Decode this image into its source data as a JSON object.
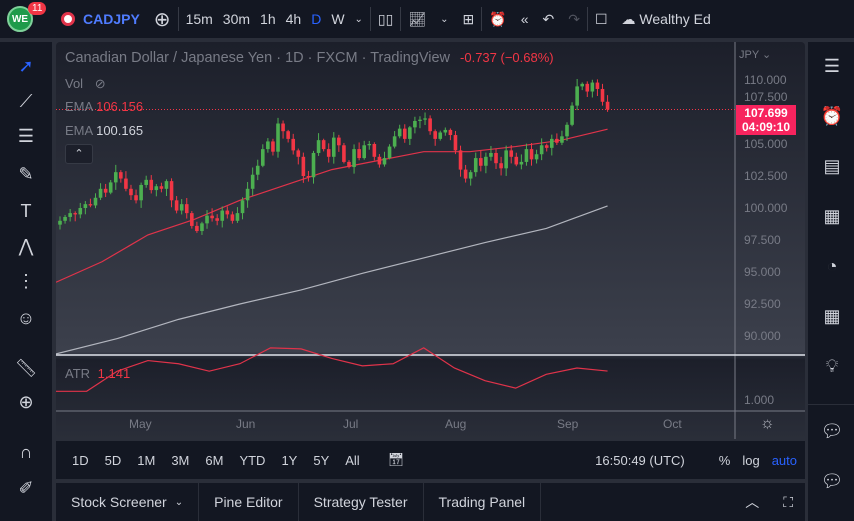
{
  "toolbar": {
    "notif_count": "11",
    "symbol": "CADJPY",
    "intervals": [
      "15m",
      "30m",
      "1h",
      "4h",
      "D",
      "W"
    ],
    "active_interval": "D",
    "layout_name": "Wealthy Ed"
  },
  "legend": {
    "title": "Canadian Dollar / Japanese Yen · 1D · FXCM · TradingView",
    "change": "-0.737 (−0.68%)",
    "vol": "Vol",
    "ema1_label": "EMA",
    "ema1_value": "106.156",
    "ema2_label": "EMA",
    "ema2_value": "100.165",
    "atr_label": "ATR",
    "atr_value": "1.141"
  },
  "price_axis": {
    "currency": "JPY",
    "ticks": [
      "110.000",
      "107.500",
      "105.000",
      "102.500",
      "100.000",
      "97.500",
      "95.000",
      "92.500",
      "90.000"
    ],
    "last_price": "107.699",
    "countdown": "04:09:10",
    "atr_tick": "1.000"
  },
  "time_axis": {
    "labels": [
      "May",
      "Jun",
      "Jul",
      "Aug",
      "Sep",
      "Oct"
    ]
  },
  "ranges": [
    "1D",
    "5D",
    "1M",
    "3M",
    "6M",
    "YTD",
    "1Y",
    "5Y",
    "All"
  ],
  "clock": "16:50:49 (UTC)",
  "pct": "%",
  "log": "log",
  "auto": "auto",
  "panels": [
    "Stock Screener",
    "Pine Editor",
    "Strategy Tester",
    "Trading Panel"
  ],
  "colors": {
    "up": "#26a69a",
    "down": "#f23645",
    "ema_fast": "#e0334a",
    "ema_slow": "#b2b5be",
    "accent": "#2962ff",
    "price_label": "#f7245e"
  },
  "chart_data": {
    "type": "candlestick",
    "ylim": [
      90,
      110
    ],
    "closes": [
      99.0,
      99.3,
      99.6,
      99.5,
      100.0,
      100.3,
      100.2,
      100.8,
      101.5,
      101.2,
      102.0,
      102.8,
      102.3,
      101.5,
      101.0,
      100.6,
      101.8,
      102.2,
      101.4,
      101.7,
      101.5,
      102.1,
      100.6,
      99.8,
      100.3,
      99.6,
      98.6,
      98.2,
      98.8,
      99.4,
      99.2,
      99.0,
      99.8,
      99.5,
      99.0,
      99.6,
      100.6,
      101.5,
      102.6,
      103.3,
      104.6,
      105.2,
      104.4,
      106.6,
      106.0,
      105.4,
      104.5,
      104.0,
      102.5,
      102.4,
      104.3,
      105.3,
      104.6,
      104.0,
      105.5,
      104.9,
      103.6,
      103.2,
      104.6,
      103.9,
      104.9,
      105.0,
      104.0,
      103.4,
      103.9,
      104.8,
      105.6,
      106.2,
      105.4,
      106.3,
      106.8,
      106.9,
      107.0,
      106.0,
      105.4,
      105.9,
      106.1,
      105.7,
      104.5,
      103.0,
      102.3,
      102.8,
      103.9,
      103.3,
      104.0,
      104.3,
      103.5,
      103.1,
      104.5,
      104.0,
      103.4,
      103.6,
      104.6,
      103.8,
      104.2,
      104.9,
      104.7,
      105.4,
      105.1,
      105.6,
      106.5,
      108.0,
      109.5,
      109.7,
      109.1,
      109.8,
      109.3,
      108.3,
      107.7
    ],
    "ema_fast": [
      94.2,
      95.8,
      97.9,
      99.1,
      100.6,
      101.8,
      103.0,
      103.7,
      104.4,
      104.4,
      104.8,
      105.3,
      106.156
    ],
    "ema_slow": [
      88.6,
      89.8,
      91.3,
      92.5,
      93.6,
      94.9,
      96.1,
      97.3,
      98.4,
      100.165
    ],
    "atr": [
      0.95,
      0.95,
      1.14,
      1.24,
      1.21,
      1.14,
      1.21,
      1.36,
      1.35,
      1.26,
      1.19,
      1.21,
      1.36,
      1.17,
      1.05,
      0.98,
      1.11,
      1.17,
      1.141
    ]
  }
}
